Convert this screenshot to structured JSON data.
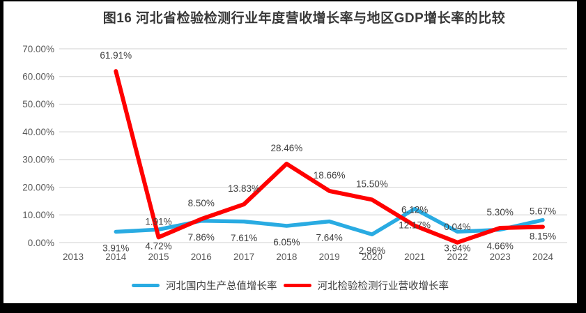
{
  "chart_data": {
    "type": "line",
    "title": "图16 河北省检验检测行业年度营收增长率与地区GDP增长率的比较",
    "categories": [
      "2013",
      "2014",
      "2015",
      "2016",
      "2017",
      "2018",
      "2019",
      "2020",
      "2021",
      "2022",
      "2023",
      "2024"
    ],
    "series": [
      {
        "name": "河北国内生产总值增长率",
        "color": "#29ABE2",
        "label_position": "below",
        "values": [
          null,
          3.91,
          4.72,
          7.86,
          7.61,
          6.05,
          7.64,
          2.96,
          12.17,
          3.94,
          4.66,
          8.15
        ]
      },
      {
        "name": "河北检验检测行业营收增长率",
        "color": "#FF0000",
        "label_position": "above",
        "values": [
          null,
          61.91,
          1.91,
          8.5,
          13.83,
          28.46,
          18.66,
          15.5,
          6.12,
          0.04,
          5.3,
          5.67
        ]
      }
    ],
    "xlabel": "",
    "ylabel": "",
    "ylim": [
      0,
      70
    ],
    "y_tick_labels": [
      "0.00%",
      "10.00%",
      "20.00%",
      "30.00%",
      "40.00%",
      "50.00%",
      "60.00%",
      "70.00%"
    ],
    "value_suffix": "%",
    "grid": true,
    "legend_position": "bottom"
  },
  "colors": {
    "frame": "#000000",
    "background": "#FFFFFF",
    "grid": "#D9D9D9",
    "axis_text": "#595959",
    "data_label_text": "#404040",
    "title_text": "#383838"
  }
}
